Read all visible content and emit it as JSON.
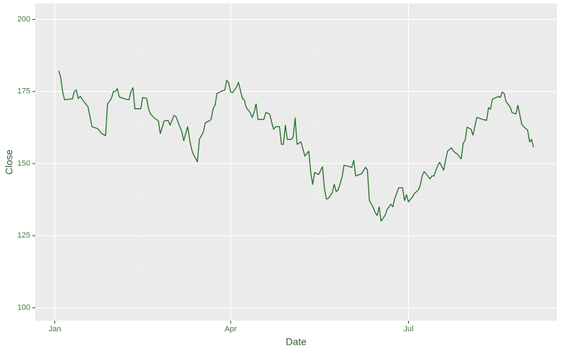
{
  "chart_data": {
    "type": "line",
    "x_label": "Date",
    "y_label": "Close",
    "x": [
      2,
      3,
      4,
      5,
      8,
      9,
      10,
      11,
      12,
      13,
      15,
      17,
      18,
      19,
      22,
      24,
      26,
      27,
      29,
      30,
      31,
      32,
      33,
      36,
      38,
      39,
      40,
      41,
      44,
      45,
      47,
      48,
      49,
      51,
      53,
      54,
      56,
      58,
      59,
      61,
      62,
      64,
      65,
      66,
      68,
      69,
      70,
      71,
      73,
      74,
      76,
      77,
      79,
      80,
      81,
      82,
      83,
      85,
      87,
      88,
      89,
      90,
      91,
      93,
      94,
      96,
      97,
      98,
      100,
      101,
      102,
      103,
      104,
      107,
      108,
      110,
      111,
      112,
      113,
      115,
      116,
      117,
      118,
      119,
      121,
      122,
      123,
      124,
      126,
      127,
      128,
      130,
      131,
      132,
      133,
      135,
      137,
      138,
      139,
      140,
      142,
      143,
      144,
      145,
      147,
      148,
      150,
      152,
      153,
      154,
      157,
      159,
      160,
      161,
      163,
      164,
      165,
      166,
      167,
      169,
      170,
      172,
      173,
      174,
      176,
      178,
      179,
      180,
      181,
      183,
      184,
      186,
      187,
      188,
      189,
      190,
      192,
      193,
      194,
      196,
      197,
      198,
      199,
      200,
      201,
      203,
      204,
      206,
      208,
      209,
      210,
      211,
      212,
      213,
      214,
      216,
      217,
      219,
      221,
      222,
      223,
      224,
      226,
      227,
      228,
      229,
      230,
      231,
      233,
      234,
      236,
      237,
      239,
      240,
      242,
      243,
      244,
      245
    ],
    "series": [
      {
        "name": "Close",
        "color": "#1f6b1f",
        "values": [
          182.2,
          180,
          175,
          172.1,
          172.4,
          172.4,
          175,
          175.5,
          172.6,
          173.3,
          171.4,
          169.7,
          166.3,
          162.8,
          162.1,
          160.4,
          159.7,
          170.7,
          172.6,
          175,
          175,
          176,
          173.1,
          172.4,
          172.1,
          175,
          176.3,
          169,
          169,
          172.9,
          172.6,
          169,
          167.2,
          165.8,
          164.8,
          160.4,
          164.8,
          165,
          163.3,
          166.7,
          166.3,
          162.8,
          161.1,
          157.9,
          162.8,
          158.4,
          155,
          153.1,
          150.6,
          158.4,
          160.9,
          164.1,
          164.8,
          165.3,
          169,
          170.2,
          174.3,
          175,
          175.5,
          178.9,
          178,
          174.8,
          174.6,
          176.5,
          178.2,
          172.6,
          172.1,
          169.4,
          167.7,
          166,
          167.7,
          170.7,
          165.3,
          165.3,
          167.7,
          167.2,
          164.3,
          161.9,
          162.8,
          162.8,
          156.7,
          156.7,
          163.3,
          158.4,
          158.4,
          159.2,
          165.8,
          156.7,
          157.5,
          155,
          152.6,
          154.3,
          146.9,
          142.8,
          146.9,
          146.2,
          148.9,
          141.3,
          137.7,
          137.9,
          139.9,
          142.8,
          140.3,
          140.8,
          145.2,
          149.4,
          149.1,
          148.7,
          151.1,
          145.7,
          146.5,
          148.7,
          147.8,
          137.2,
          134.7,
          133,
          132,
          135,
          130.1,
          132,
          134,
          135.9,
          135,
          137.9,
          141.6,
          141.6,
          137.2,
          139.2,
          136.7,
          138.4,
          139.6,
          140.8,
          142.3,
          145.7,
          147.2,
          146.5,
          144.7,
          145.7,
          145.7,
          149.4,
          150.4,
          149.1,
          147.7,
          151.1,
          154.3,
          155.5,
          154.3,
          153.3,
          151.6,
          157,
          158,
          162.6,
          162.3,
          161.9,
          159.9,
          166,
          165.8,
          165.3,
          165,
          169.4,
          168.9,
          172.4,
          172.9,
          173.3,
          172.9,
          174.8,
          174.3,
          171.4,
          169.7,
          167.7,
          167.2,
          170.2,
          163.6,
          162.8,
          161.6,
          157.5,
          158.4,
          155.7
        ]
      }
    ],
    "xlim": [
      -10,
      257
    ],
    "ylim": [
      95.5,
      205.5
    ],
    "xticks": [
      {
        "value": 0,
        "label": "Jan"
      },
      {
        "value": 90,
        "label": "Apr"
      },
      {
        "value": 181,
        "label": "Jul"
      }
    ],
    "yticks": [
      100,
      125,
      150,
      175,
      200
    ],
    "grid": true
  }
}
